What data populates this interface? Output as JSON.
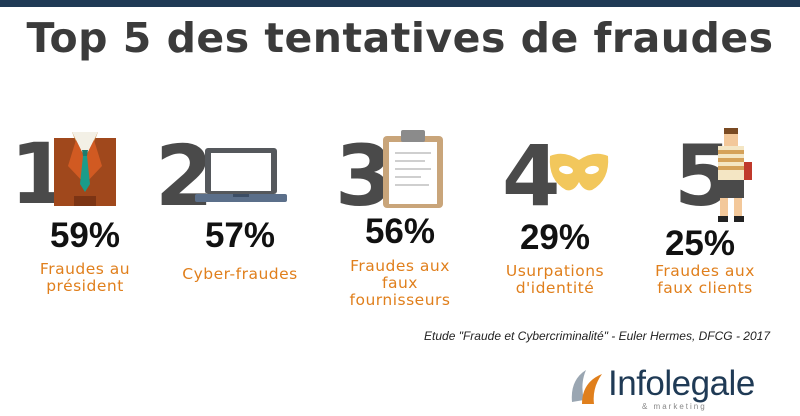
{
  "title": "Top 5 des tentatives de fraudes",
  "items": [
    {
      "rank": "1",
      "percent": "59%",
      "label_lines": [
        "Fraudes au",
        "président"
      ],
      "icon": "suit-tie-icon"
    },
    {
      "rank": "2",
      "percent": "57%",
      "label_lines": [
        "Cyber-fraudes"
      ],
      "icon": "laptop-icon"
    },
    {
      "rank": "3",
      "percent": "56%",
      "label_lines": [
        "Fraudes aux",
        "faux",
        "fournisseurs"
      ],
      "icon": "clipboard-icon"
    },
    {
      "rank": "4",
      "percent": "29%",
      "label_lines": [
        "Usurpations",
        "d'identité"
      ],
      "icon": "mask-icon"
    },
    {
      "rank": "5",
      "percent": "25%",
      "label_lines": [
        "Fraudes aux",
        "faux clients"
      ],
      "icon": "person-icon"
    }
  ],
  "source": "Etude \"Fraude et Cybercriminalité\" - Euler Hermes, DFCG - 2017",
  "logo": {
    "name": "Infolegale",
    "tagline": "& marketing"
  },
  "colors": {
    "accent": "#e07f1c",
    "dark": "#1f3a55",
    "number": "#4a4a4a"
  }
}
